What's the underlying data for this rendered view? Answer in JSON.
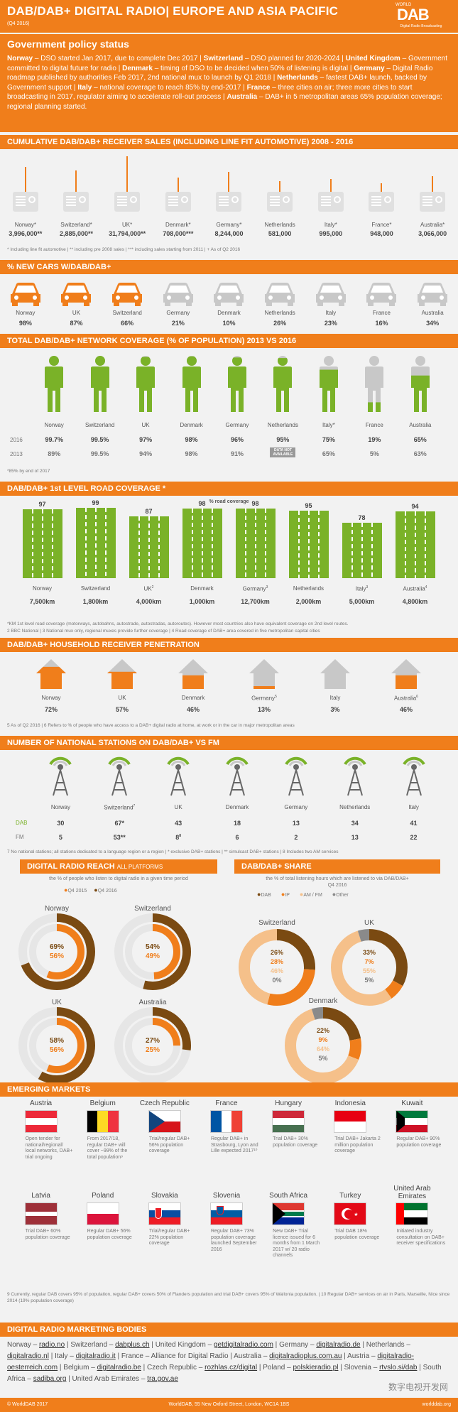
{
  "header": {
    "title": "DAB/DAB+ DIGITAL RADIO| EUROPE AND ASIA PACIFIC",
    "subtitle": "(Q4 2016)",
    "logo_top": "WORLD",
    "logo_main": "DAB",
    "logo_tag": "Digital Radio Broadcasting"
  },
  "gov": {
    "title": "Government policy status",
    "items": [
      {
        "c": "Norway",
        "t": " – DSO started Jan 2017, due to complete Dec 2017 | "
      },
      {
        "c": "Switzerland",
        "t": " – DSO planned for 2020-2024 | "
      },
      {
        "c": "United Kingdom",
        "t": " – Government committed to digital future for radio | "
      },
      {
        "c": "Denmark",
        "t": " – timing of DSO to be decided when 50% of listening is digital | "
      },
      {
        "c": "Germany",
        "t": " – Digital Radio roadmap published by authorities Feb 2017, 2nd national mux to launch by Q1 2018 | "
      },
      {
        "c": "Netherlands",
        "t": " – fastest DAB+ launch, backed by Government support | "
      },
      {
        "c": "Italy",
        "t": " – national coverage to reach 85% by end-2017 | "
      },
      {
        "c": "France",
        "t": " – three cities on air; three more cities to start broadcasting in 2017, regulator aiming to accelerate roll-out process | "
      },
      {
        "c": "Australia",
        "t": " – DAB+ in 5 metropolitan areas 65% population coverage; regional planning started."
      }
    ]
  },
  "sales": {
    "title": "CUMULATIVE DAB/DAB+ RECEIVER SALES (INCLUDING LINE FIT AUTOMOTIVE) 2008 - 2016",
    "items": [
      {
        "c": "Norway*",
        "v": "3,996,000**"
      },
      {
        "c": "Switzerland*",
        "v": "2,885,000**"
      },
      {
        "c": "UK*",
        "v": "31,794,000**"
      },
      {
        "c": "Denmark*",
        "v": "708,000***"
      },
      {
        "c": "Germany*",
        "v": "8,244,000"
      },
      {
        "c": "Netherlands",
        "v": "581,000"
      },
      {
        "c": "Italy*",
        "v": "995,000"
      },
      {
        "c": "France*",
        "v": "948,000"
      },
      {
        "c": "Australia*",
        "v": "3,066,000"
      }
    ],
    "note": "* Including line fit automotive | ** including pre 2008 sales | *** including sales starting from 2011 | + As of Q2 2016"
  },
  "cars": {
    "title": "% NEW CARS W/DAB/DAB+",
    "items": [
      {
        "c": "Norway",
        "v": "98%",
        "p": 98
      },
      {
        "c": "UK",
        "v": "87%",
        "p": 87
      },
      {
        "c": "Switzerland",
        "v": "66%",
        "p": 66
      },
      {
        "c": "Germany",
        "v": "21%",
        "p": 21
      },
      {
        "c": "Denmark",
        "v": "10%",
        "p": 10
      },
      {
        "c": "Netherlands",
        "v": "26%",
        "p": 26
      },
      {
        "c": "Italy",
        "v": "23%",
        "p": 23
      },
      {
        "c": "France",
        "v": "16%",
        "p": 16
      },
      {
        "c": "Australia",
        "v": "34%",
        "p": 34
      }
    ]
  },
  "coverage": {
    "title": "TOTAL DAB/DAB+ NETWORK COVERAGE (% OF POPULATION) 2013 VS 2016",
    "y2016": "2016",
    "y2013": "2013",
    "items": [
      {
        "c": "Norway",
        "a": "99.7%",
        "b": "89%",
        "p": 99.7
      },
      {
        "c": "Switzerland",
        "a": "99.5%",
        "b": "99.5%",
        "p": 99.5
      },
      {
        "c": "UK",
        "a": "97%",
        "b": "94%",
        "p": 97
      },
      {
        "c": "Denmark",
        "a": "98%",
        "b": "98%",
        "p": 98
      },
      {
        "c": "Germany",
        "a": "96%",
        "b": "91%",
        "p": 96
      },
      {
        "c": "Netherlands",
        "a": "95%",
        "b": "DATA NOT AVAILABLE",
        "p": 95
      },
      {
        "c": "Italy*",
        "a": "75%",
        "b": "65%",
        "p": 75
      },
      {
        "c": "France",
        "a": "19%",
        "b": "5%",
        "p": 19
      },
      {
        "c": "Australia",
        "a": "65%",
        "b": "63%",
        "p": 65
      }
    ],
    "note": "*85% by end of 2017"
  },
  "road": {
    "title": "DAB/DAB+ 1st LEVEL ROAD COVERAGE *",
    "caption": "% road coverage",
    "items": [
      {
        "c": "Norway",
        "p": "97",
        "k": "7,500km"
      },
      {
        "c": "Switzerland",
        "p": "99",
        "k": "1,800km"
      },
      {
        "c": "UK",
        "p": "87",
        "k": "4,000km",
        "s": "2"
      },
      {
        "c": "Denmark",
        "p": "98",
        "k": "1,000km"
      },
      {
        "c": "Germany",
        "p": "98",
        "k": "12,700km",
        "s": "3"
      },
      {
        "c": "Netherlands",
        "p": "95",
        "k": "2,000km"
      },
      {
        "c": "Italy",
        "p": "78",
        "k": "5,000km",
        "s": "3"
      },
      {
        "c": "Australia",
        "p": "94",
        "k": "4,800km",
        "s": "4"
      }
    ],
    "note1": "*KM 1st level road coverage (motorways, autobahns, autostrade, autostradas, autoroutes). However most countries also have equivalent coverage on 2nd level routes.",
    "note2": "2 BBC National   |   3 National mux only, regional muxes provide further coverage   |   4 Road coverage of DAB+ area covered in five metropolitan capital cities"
  },
  "household": {
    "title": "DAB/DAB+ HOUSEHOLD RECEIVER PENETRATION",
    "items": [
      {
        "c": "Norway",
        "v": "72%",
        "p": 72
      },
      {
        "c": "UK",
        "v": "57%",
        "p": 57
      },
      {
        "c": "Denmark",
        "v": "46%",
        "p": 46
      },
      {
        "c": "Germany",
        "v": "13%",
        "p": 13,
        "s": "5"
      },
      {
        "c": "Italy",
        "v": "3%",
        "p": 3
      },
      {
        "c": "Australia",
        "v": "46%",
        "p": 46,
        "s": "6"
      }
    ],
    "note": "5 As of Q2 2016  |  6 Refers to % of people who have access to a DAB+ digital radio at home, at work or in the car in major metropolitan areas"
  },
  "stations": {
    "title": "NUMBER OF NATIONAL STATIONS ON DAB/DAB+ VS FM",
    "dab": "DAB",
    "fm": "FM",
    "items": [
      {
        "c": "Norway",
        "d": "30",
        "f": "5"
      },
      {
        "c": "Switzerland",
        "d": "67*",
        "f": "53**",
        "s": "7"
      },
      {
        "c": "UK",
        "d": "43",
        "f": "8",
        "fs": "8"
      },
      {
        "c": "Denmark",
        "d": "18",
        "f": "6"
      },
      {
        "c": "Germany",
        "d": "13",
        "f": "2"
      },
      {
        "c": "Netherlands",
        "d": "34",
        "f": "13"
      },
      {
        "c": "Italy",
        "d": "41",
        "f": "22"
      }
    ],
    "note": "7 No national stations; all stations dedicated to a language region or a region  |  * exclusive DAB+ stations  |  ** simulcast DAB+ stations  |  8 Includes two AM services"
  },
  "reach": {
    "title": "DIGITAL RADIO REACH",
    "title2": "ALL PLATFORMS",
    "desc": "the % of people who listen to digital radio in a given time period",
    "l1": "Q4 2015",
    "l2": "Q4 2016",
    "items": [
      {
        "c": "Norway",
        "a": "69%",
        "b": "56%",
        "pa": 69,
        "pb": 56
      },
      {
        "c": "Switzerland",
        "a": "54%",
        "b": "49%",
        "pa": 54,
        "pb": 49
      },
      {
        "c": "UK",
        "a": "58%",
        "b": "56%",
        "pa": 58,
        "pb": 56
      },
      {
        "c": "Australia",
        "a": "27%",
        "b": "25%",
        "pa": 27,
        "pb": 25
      }
    ]
  },
  "share": {
    "title": "DAB/DAB+ SHARE",
    "desc": "the % of total listening hours which are listened to via DAB/DAB+",
    "period": "Q4 2016",
    "l1": "DAB",
    "l2": "IP",
    "l3": "AM / FM",
    "l4": "Other",
    "items": [
      {
        "c": "Switzerland",
        "v": [
          "26%",
          "28%",
          "46%",
          "0%"
        ],
        "n": [
          26,
          28,
          46,
          0
        ]
      },
      {
        "c": "UK",
        "v": [
          "33%",
          "7%",
          "55%",
          "5%"
        ],
        "n": [
          33,
          7,
          55,
          5
        ]
      },
      {
        "c": "Denmark",
        "v": [
          "22%",
          "9%",
          "64%",
          "5%"
        ],
        "n": [
          22,
          9,
          64,
          5
        ]
      }
    ]
  },
  "emerging": {
    "title": "EMERGING MARKETS",
    "items": [
      {
        "c": "Austria",
        "d": "Open tender for national/regional/ local networks, DAB+ trial ongoing",
        "f": "at"
      },
      {
        "c": "Belgium",
        "d": "From 2017/18, regular DAB+ will cover ~99% of the total population⁹",
        "f": "be"
      },
      {
        "c": "Czech Republic",
        "d": "Trial/regular DAB+ 56% population coverage",
        "f": "cz"
      },
      {
        "c": "France",
        "d": "Regular DAB+ in Strasbourg, Lyon and Lille expected 2017¹⁰",
        "f": "fr"
      },
      {
        "c": "Hungary",
        "d": "Trial DAB+ 30% population coverage",
        "f": "hu"
      },
      {
        "c": "Indonesia",
        "d": "Trial DAB+ Jakarta 2 million population coverage",
        "f": "id"
      },
      {
        "c": "Kuwait",
        "d": "Regular DAB+ 90% population coverage",
        "f": "kw"
      },
      {
        "c": "Latvia",
        "d": "Trial DAB+ 60% population coverage",
        "f": "lv"
      },
      {
        "c": "Poland",
        "d": "Regular DAB+ 56% population coverage",
        "f": "pl"
      },
      {
        "c": "Slovakia",
        "d": "Trial/regular DAB+ 22% population coverage",
        "f": "sk"
      },
      {
        "c": "Slovenia",
        "d": "Regular DAB+ 73% population coverage launched September 2016",
        "f": "si"
      },
      {
        "c": "South Africa",
        "d": "New DAB+ Trial licence issued for 6 months from 1 March 2017 w/ 20 radio channels",
        "f": "za"
      },
      {
        "c": "Turkey",
        "d": "Trial DAB 18% population coverage",
        "f": "tr"
      },
      {
        "c": "United Arab Emirates",
        "d": "Initiated industry consultation on DAB+ receiver specifications",
        "f": "ae"
      }
    ],
    "note": "9 Currently, regular DAB covers 95% of population, regular DAB+ covers 50% of Flanders population and trial DAB+ covers 95% of Wallonia population.  |  10 Regular DAB+ services on air in Paris, Marseille, Nice since 2014 (19% population coverage)"
  },
  "bodies": {
    "title": "DIGITAL RADIO MARKETING BODIES",
    "items": [
      {
        "c": "Norway",
        "l": "radio.no"
      },
      {
        "c": "Switzerland",
        "l": "dabplus.ch"
      },
      {
        "c": "United Kingdom",
        "l": "getdigitalradio.com"
      },
      {
        "c": "Germany",
        "l": "digitalradio.de"
      },
      {
        "c": "Netherlands",
        "l": "digitalradio.nl"
      },
      {
        "c": "Italy",
        "l": "digitalradio.it"
      },
      {
        "c": "France",
        "l": "",
        "t": "Alliance for Digital Radio"
      },
      {
        "c": "Australia",
        "l": "digitalradioplus.com.au"
      },
      {
        "c": "Austria",
        "l": "digitalradio-oesterreich.com"
      },
      {
        "c": "Belgium",
        "l": "digitalradio.be"
      },
      {
        "c": "Czech Republic",
        "l": "rozhlas.cz/digital"
      },
      {
        "c": "Poland",
        "l": "polskieradio.pl"
      },
      {
        "c": "Slovenia",
        "l": "rtvslo.si/dab"
      },
      {
        "c": "South Africa",
        "l": "sadiba.org"
      },
      {
        "c": "United Arab Emirates",
        "l": "tra.gov.ae"
      }
    ]
  },
  "footer": {
    "left": "© WorldDAB 2017",
    "center": "WorldDAB, 55 New Oxford Street, London, WC1A 1BS",
    "right": "worlddab.org",
    "watermark": "数字电视开发网"
  },
  "colors": {
    "orange": "#f07e1b",
    "green": "#7ab228",
    "grey": "#c8c8c8",
    "brown": "#7a4a12"
  }
}
